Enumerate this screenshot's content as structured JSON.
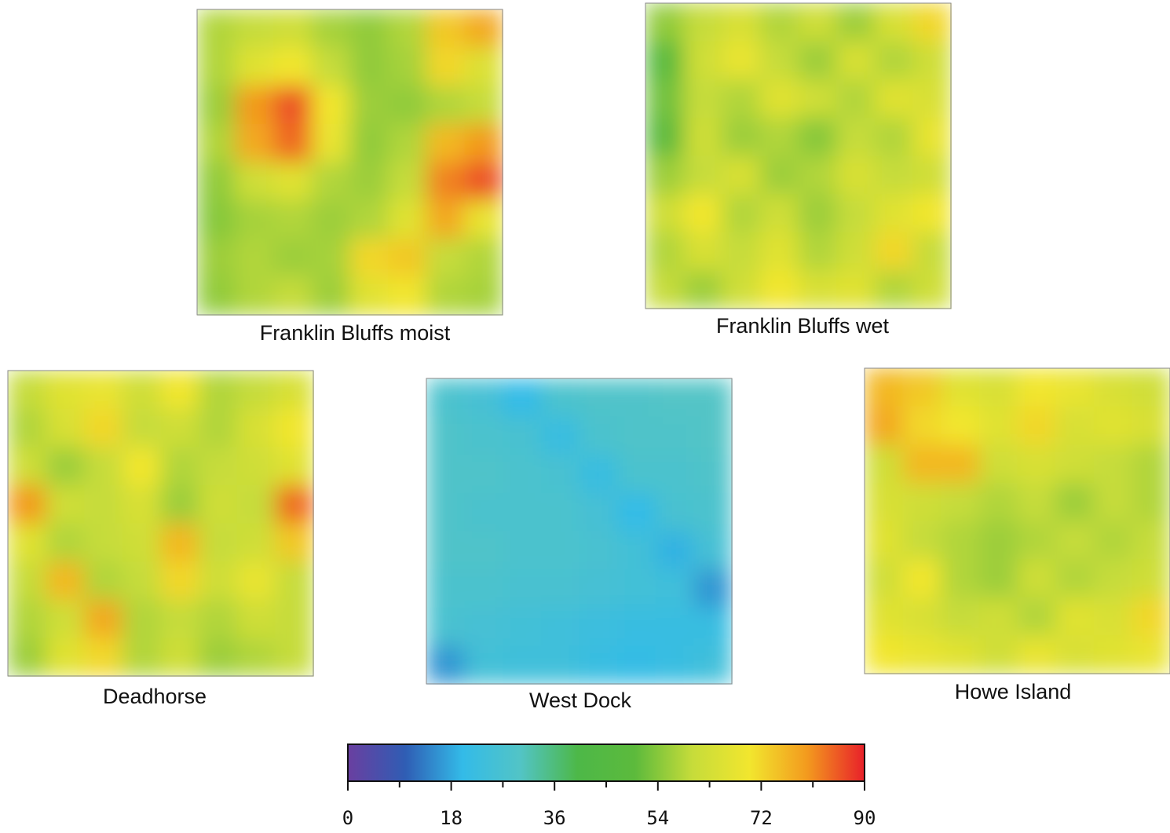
{
  "chart_data": {
    "type": "heatmap",
    "panels": [
      {
        "title": "Franklin Bluffs moist",
        "values": [
          [
            58,
            60,
            62,
            57,
            55,
            58,
            74,
            78
          ],
          [
            58,
            66,
            70,
            60,
            55,
            57,
            72,
            65
          ],
          [
            56,
            80,
            86,
            70,
            56,
            55,
            58,
            60
          ],
          [
            58,
            78,
            84,
            68,
            55,
            58,
            76,
            80
          ],
          [
            55,
            62,
            66,
            58,
            56,
            60,
            82,
            86
          ],
          [
            54,
            57,
            58,
            56,
            58,
            66,
            78,
            68
          ],
          [
            56,
            58,
            56,
            57,
            72,
            74,
            60,
            58
          ],
          [
            55,
            58,
            60,
            56,
            66,
            70,
            58,
            57
          ]
        ]
      },
      {
        "title": "Franklin Bluffs wet",
        "values": [
          [
            55,
            60,
            64,
            58,
            62,
            56,
            64,
            72
          ],
          [
            48,
            62,
            68,
            60,
            56,
            64,
            58,
            62
          ],
          [
            52,
            60,
            58,
            66,
            62,
            58,
            66,
            64
          ],
          [
            50,
            62,
            56,
            58,
            54,
            60,
            58,
            68
          ],
          [
            56,
            60,
            64,
            56,
            58,
            64,
            60,
            62
          ],
          [
            62,
            70,
            58,
            62,
            56,
            60,
            66,
            70
          ],
          [
            58,
            64,
            60,
            66,
            58,
            62,
            72,
            60
          ],
          [
            60,
            56,
            62,
            70,
            64,
            66,
            58,
            62
          ]
        ]
      },
      {
        "title": "Deadhorse",
        "values": [
          [
            60,
            66,
            68,
            62,
            70,
            58,
            60,
            64
          ],
          [
            58,
            64,
            72,
            60,
            62,
            58,
            64,
            70
          ],
          [
            62,
            56,
            60,
            70,
            58,
            60,
            62,
            66
          ],
          [
            80,
            62,
            60,
            64,
            56,
            62,
            60,
            84
          ],
          [
            66,
            58,
            60,
            62,
            76,
            60,
            62,
            74
          ],
          [
            60,
            76,
            58,
            60,
            72,
            62,
            68,
            60
          ],
          [
            58,
            62,
            78,
            58,
            60,
            58,
            62,
            60
          ],
          [
            56,
            66,
            72,
            58,
            62,
            56,
            58,
            60
          ]
        ]
      },
      {
        "title": "West Dock",
        "values": [
          [
            28,
            26,
            20,
            28,
            29,
            29,
            30,
            30
          ],
          [
            29,
            28,
            27,
            22,
            28,
            29,
            29,
            30
          ],
          [
            29,
            29,
            28,
            27,
            22,
            28,
            28,
            29
          ],
          [
            29,
            28,
            28,
            28,
            26,
            20,
            27,
            28
          ],
          [
            29,
            29,
            28,
            28,
            27,
            25,
            19,
            26
          ],
          [
            28,
            28,
            27,
            27,
            26,
            25,
            24,
            16
          ],
          [
            27,
            26,
            25,
            24,
            23,
            22,
            22,
            22
          ],
          [
            16,
            25,
            24,
            24,
            22,
            21,
            22,
            24
          ]
        ]
      },
      {
        "title": "Howe Island",
        "values": [
          [
            76,
            74,
            66,
            64,
            70,
            68,
            64,
            62
          ],
          [
            78,
            72,
            70,
            66,
            72,
            64,
            66,
            64
          ],
          [
            62,
            76,
            76,
            62,
            64,
            62,
            60,
            58
          ],
          [
            64,
            62,
            60,
            58,
            60,
            56,
            60,
            58
          ],
          [
            66,
            60,
            58,
            56,
            58,
            60,
            58,
            60
          ],
          [
            62,
            70,
            58,
            56,
            62,
            58,
            60,
            62
          ],
          [
            66,
            64,
            60,
            62,
            58,
            66,
            64,
            72
          ],
          [
            70,
            68,
            66,
            62,
            68,
            64,
            66,
            68
          ]
        ]
      }
    ],
    "colorbar": {
      "lim": [
        0,
        90
      ],
      "ticks": [
        0,
        18,
        36,
        54,
        72,
        90
      ],
      "minor_ticks": [
        9,
        27,
        45,
        63,
        81
      ],
      "colors": [
        "#6a3fa0",
        "#2f5db4",
        "#33bbe8",
        "#52c4c6",
        "#4db848",
        "#5cba3c",
        "#c6dc3a",
        "#f2e62e",
        "#f39a1e",
        "#e8202a"
      ]
    }
  }
}
